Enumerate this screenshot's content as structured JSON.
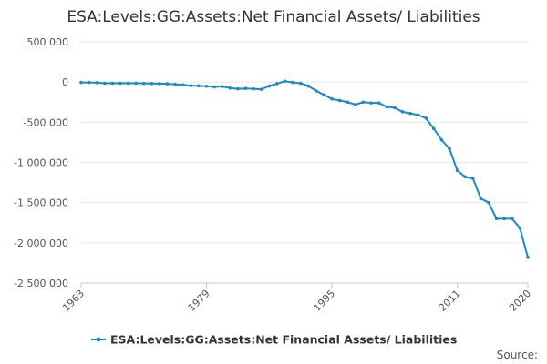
{
  "chart_data": {
    "type": "line",
    "title": "ESA:Levels:GG:Assets:Net Financial Assets/ Liabilities",
    "xlabel": "",
    "ylabel": "",
    "source_label": "Source:",
    "grid": true,
    "legend_position": "bottom",
    "xlim": [
      1963,
      2020
    ],
    "ylim": [
      -2500000,
      500000
    ],
    "y_ticks": [
      500000,
      0,
      -500000,
      -1000000,
      -1500000,
      -2000000,
      -2500000
    ],
    "y_tick_labels": [
      "500 000",
      "0",
      "-500 000",
      "-1 000 000",
      "-1 500 000",
      "-2 000 000",
      "-2 500 000"
    ],
    "x_ticks": [
      1963,
      1979,
      1995,
      2011,
      2020
    ],
    "x_tick_labels": [
      "1963",
      "1979",
      "1995",
      "2011",
      "2020"
    ],
    "colors": {
      "series": "#1a8bc6",
      "grid": "#e6e6e6",
      "axis": "#c8c8c8",
      "text": "#333333",
      "tick_text": "#555555"
    },
    "series": [
      {
        "name": "ESA:Levels:GG:Assets:Net Financial Assets/ Liabilities",
        "x": [
          1963,
          1964,
          1965,
          1966,
          1967,
          1968,
          1969,
          1970,
          1971,
          1972,
          1973,
          1974,
          1975,
          1976,
          1977,
          1978,
          1979,
          1980,
          1981,
          1982,
          1983,
          1984,
          1985,
          1986,
          1987,
          1988,
          1989,
          1990,
          1991,
          1992,
          1993,
          1994,
          1995,
          1996,
          1997,
          1998,
          1999,
          2000,
          2001,
          2002,
          2003,
          2004,
          2005,
          2006,
          2007,
          2008,
          2009,
          2010,
          2011,
          2012,
          2013,
          2014,
          2015,
          2016,
          2017,
          2018,
          2019,
          2020
        ],
        "values": [
          -5000,
          -5000,
          -8000,
          -15000,
          -15000,
          -15000,
          -15000,
          -15000,
          -17000,
          -18000,
          -20000,
          -22000,
          -28000,
          -35000,
          -45000,
          -48000,
          -52000,
          -60000,
          -55000,
          -75000,
          -85000,
          -80000,
          -85000,
          -90000,
          -50000,
          -20000,
          10000,
          -5000,
          -15000,
          -50000,
          -110000,
          -160000,
          -210000,
          -230000,
          -250000,
          -280000,
          -250000,
          -260000,
          -260000,
          -310000,
          -320000,
          -370000,
          -390000,
          -410000,
          -450000,
          -580000,
          -720000,
          -830000,
          -1100000,
          -1180000,
          -1200000,
          -1450000,
          -1500000,
          -1700000,
          -1700000,
          -1700000,
          -1820000,
          -2180000
        ]
      }
    ]
  }
}
